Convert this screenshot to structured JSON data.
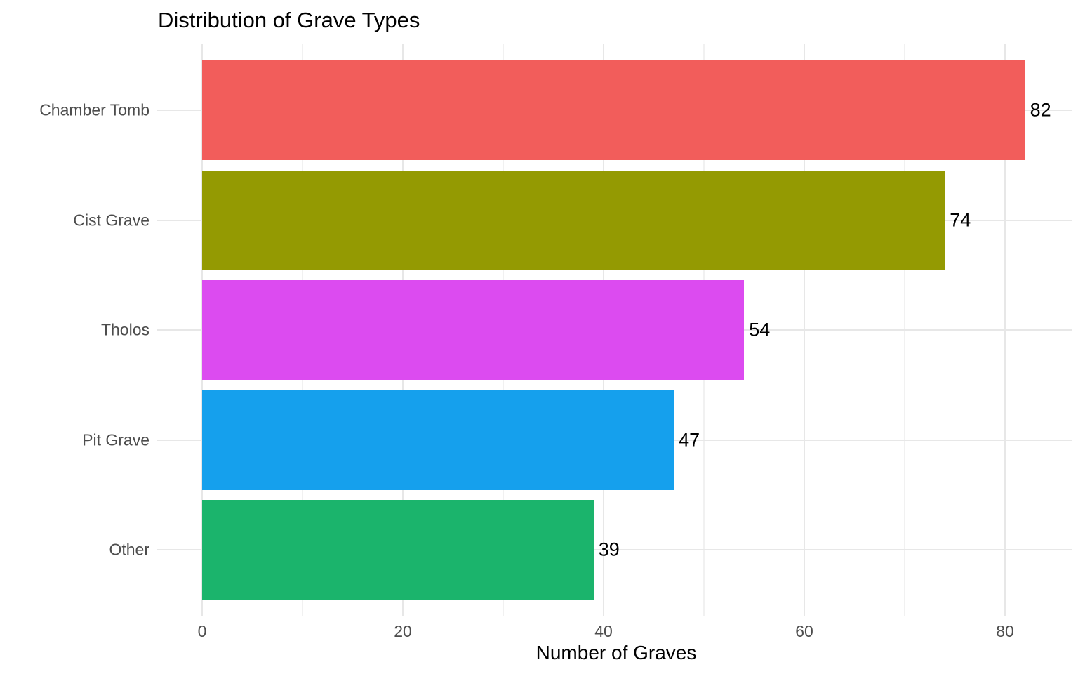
{
  "chart_data": {
    "type": "bar",
    "orientation": "horizontal",
    "title": "Distribution of Grave Types",
    "xlabel": "Number of Graves",
    "ylabel": "",
    "categories": [
      "Chamber Tomb",
      "Cist Grave",
      "Tholos",
      "Pit Grave",
      "Other"
    ],
    "values": [
      82,
      74,
      54,
      47,
      39
    ],
    "value_labels": [
      "82",
      "74",
      "54",
      "47",
      "39"
    ],
    "bar_colors": [
      "#F25D5B",
      "#949A02",
      "#DC4BF0",
      "#15A0ED",
      "#1BB46C"
    ],
    "x_ticks": [
      0,
      20,
      40,
      60,
      80
    ],
    "x_tick_labels": [
      "0",
      "20",
      "40",
      "60",
      "80"
    ],
    "x_minor_ticks": [
      10,
      30,
      50,
      70
    ],
    "xlim": [
      -4.5,
      86.5
    ],
    "grid": true,
    "legend": false,
    "style": {
      "axis_text_color": "#4d4d4d",
      "title_color": "#000000",
      "value_label_color": "#000000",
      "major_grid_color": "#e7e7e7",
      "minor_grid_color": "#f1f1f1",
      "background": "#ffffff"
    }
  }
}
